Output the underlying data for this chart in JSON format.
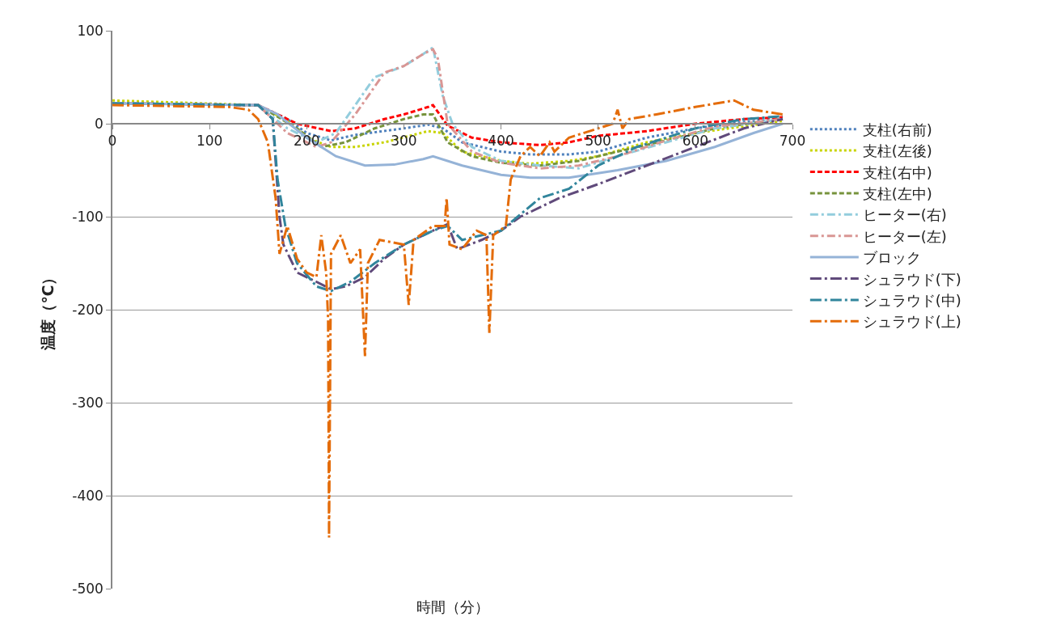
{
  "chart_data": {
    "type": "line",
    "xlabel": "時間（分）",
    "ylabel": "温度（℃）",
    "xlim": [
      0,
      700
    ],
    "xticks": [
      0,
      100,
      200,
      300,
      400,
      500,
      600,
      700
    ],
    "ylim": [
      -500,
      100
    ],
    "yticks": [
      -500,
      -400,
      -300,
      -200,
      -100,
      0,
      100
    ],
    "grid": "y",
    "legend": "right",
    "marker": "none",
    "series": [
      {
        "name": "支柱(右前)",
        "color": "#4f81bd",
        "line_style": "dotted",
        "x": [
          0,
          150,
          180,
          200,
          225,
          250,
          300,
          325,
          340,
          360,
          400,
          430,
          470,
          500,
          550,
          600,
          650,
          690
        ],
        "values": [
          22,
          20,
          5,
          -10,
          -18,
          -12,
          -5,
          -1,
          -5,
          -20,
          -30,
          -33,
          -33,
          -30,
          -15,
          -5,
          2,
          5
        ]
      },
      {
        "name": "支柱(左後)",
        "color": "#c8d400",
        "line_style": "dotted",
        "x": [
          0,
          150,
          180,
          200,
          225,
          250,
          280,
          325,
          340,
          360,
          400,
          430,
          470,
          500,
          550,
          600,
          690
        ],
        "values": [
          25,
          20,
          3,
          -15,
          -25,
          -25,
          -20,
          -8,
          -10,
          -30,
          -40,
          -43,
          -40,
          -35,
          -20,
          -10,
          3
        ]
      },
      {
        "name": "支柱(右中)",
        "color": "#ff0000",
        "line_style": "dashed",
        "x": [
          0,
          150,
          190,
          225,
          250,
          280,
          300,
          325,
          330,
          345,
          370,
          400,
          440,
          470,
          500,
          550,
          600,
          650,
          690
        ],
        "values": [
          22,
          20,
          0,
          -8,
          -5,
          5,
          10,
          18,
          20,
          -2,
          -15,
          -20,
          -23,
          -20,
          -13,
          -8,
          0,
          5,
          7
        ]
      },
      {
        "name": "支柱(左中)",
        "color": "#77933c",
        "line_style": "dashed",
        "x": [
          0,
          150,
          190,
          215,
          240,
          270,
          300,
          320,
          330,
          345,
          370,
          400,
          440,
          480,
          520,
          570,
          620,
          690
        ],
        "values": [
          22,
          20,
          -5,
          -25,
          -20,
          -5,
          5,
          10,
          10,
          -20,
          -35,
          -42,
          -45,
          -40,
          -30,
          -18,
          -5,
          5
        ]
      },
      {
        "name": "ヒーター(右)",
        "color": "#93cddd",
        "line_style": "dashdot",
        "x": [
          0,
          150,
          180,
          210,
          230,
          250,
          270,
          300,
          320,
          330,
          340,
          350,
          370,
          400,
          440,
          480,
          520,
          570,
          620,
          690
        ],
        "values": [
          22,
          20,
          -5,
          -20,
          -10,
          20,
          50,
          62,
          75,
          82,
          30,
          0,
          -25,
          -40,
          -45,
          -48,
          -35,
          -20,
          -5,
          5
        ]
      },
      {
        "name": "ヒーター(左)",
        "color": "#d99694",
        "line_style": "dashdot",
        "x": [
          0,
          150,
          180,
          210,
          225,
          250,
          280,
          300,
          320,
          330,
          335,
          345,
          370,
          400,
          440,
          480,
          520,
          570,
          620,
          690
        ],
        "values": [
          22,
          20,
          -10,
          -25,
          -20,
          10,
          55,
          62,
          75,
          80,
          70,
          0,
          -30,
          -42,
          -48,
          -45,
          -35,
          -18,
          -3,
          5
        ]
      },
      {
        "name": "ブロック",
        "color": "#95b3d7",
        "line_style": "solid",
        "x": [
          0,
          150,
          170,
          200,
          230,
          260,
          290,
          320,
          330,
          360,
          400,
          430,
          470,
          520,
          570,
          620,
          660,
          690
        ],
        "values": [
          22,
          20,
          10,
          -15,
          -35,
          -45,
          -44,
          -38,
          -35,
          -45,
          -55,
          -58,
          -58,
          -50,
          -40,
          -25,
          -10,
          0
        ]
      },
      {
        "name": "シュラウド(下)",
        "color": "#604a7b",
        "line_style": "longdashdot",
        "x": [
          0,
          150,
          165,
          168,
          172,
          176,
          190,
          210,
          225,
          240,
          260,
          280,
          300,
          330,
          345,
          355,
          380,
          400,
          420,
          460,
          500,
          550,
          600,
          650,
          690
        ],
        "values": [
          21,
          20,
          5,
          -40,
          -100,
          -130,
          -160,
          -170,
          -178,
          -175,
          -165,
          -145,
          -130,
          -115,
          -108,
          -135,
          -125,
          -115,
          -100,
          -80,
          -65,
          -45,
          -25,
          -5,
          5
        ]
      },
      {
        "name": "シュラウド(中)",
        "color": "#31859c",
        "line_style": "longdashdot",
        "x": [
          0,
          150,
          165,
          170,
          178,
          190,
          210,
          225,
          245,
          270,
          300,
          330,
          345,
          360,
          400,
          440,
          470,
          500,
          540,
          600,
          650,
          690
        ],
        "values": [
          22,
          20,
          5,
          -60,
          -110,
          -150,
          -175,
          -180,
          -170,
          -150,
          -130,
          -115,
          -110,
          -125,
          -115,
          -80,
          -70,
          -45,
          -25,
          -5,
          5,
          8
        ]
      },
      {
        "name": "シュラウド(上)",
        "color": "#e46c0a",
        "line_style": "longdashdot",
        "x": [
          0,
          120,
          140,
          150,
          160,
          168,
          172,
          180,
          190,
          200,
          210,
          215,
          220,
          222,
          223,
          225,
          235,
          245,
          255,
          260,
          263,
          275,
          300,
          305,
          310,
          330,
          342,
          344,
          347,
          360,
          375,
          385,
          388,
          392,
          405,
          410,
          420,
          430,
          440,
          450,
          455,
          470,
          500,
          515,
          520,
          525,
          532,
          560,
          600,
          640,
          660,
          690
        ],
        "values": [
          20,
          18,
          15,
          5,
          -20,
          -80,
          -140,
          -110,
          -145,
          -160,
          -165,
          -120,
          -160,
          -210,
          -445,
          -140,
          -120,
          -150,
          -135,
          -250,
          -150,
          -125,
          -130,
          -195,
          -125,
          -110,
          -110,
          -80,
          -130,
          -135,
          -115,
          -120,
          -225,
          -120,
          -110,
          -60,
          -35,
          -25,
          -35,
          -20,
          -30,
          -15,
          -5,
          0,
          15,
          -5,
          5,
          10,
          18,
          25,
          15,
          10
        ]
      }
    ]
  }
}
